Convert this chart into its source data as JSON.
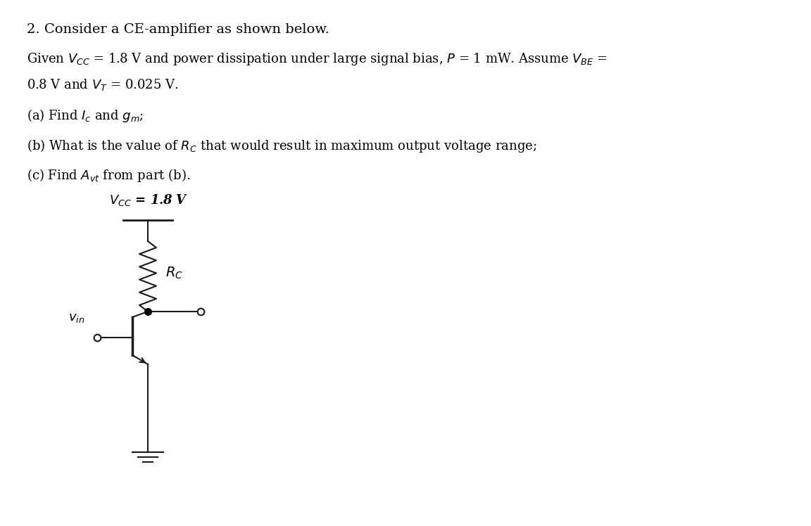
{
  "title_line": "2. Consider a CE-amplifier as shown below.",
  "given_line1": "Given $V_{CC}$ = 1.8 V and power dissipation under large signal bias, $P$ = 1 mW. Assume $V_{BE}$ =",
  "given_line2": "0.8 V and $V_T$ = 0.025 V.",
  "part_a": "(a) Find $I_c$ and $g_m$;",
  "part_b": "(b) What is the value of $R_C$ that would result in maximum output voltage range;",
  "part_c": "(c) Find $A_{vt}$ from part (b).",
  "vcc_label": "$V_{CC}$ = 1.8 V",
  "rc_label": "$R_C$",
  "vin_label": "$v_{in}$",
  "bg_color": "#ffffff",
  "text_color": "#000000",
  "circuit_color": "#1a1a1a",
  "font_size_title": 14,
  "font_size_text": 13,
  "font_size_circuit": 13
}
